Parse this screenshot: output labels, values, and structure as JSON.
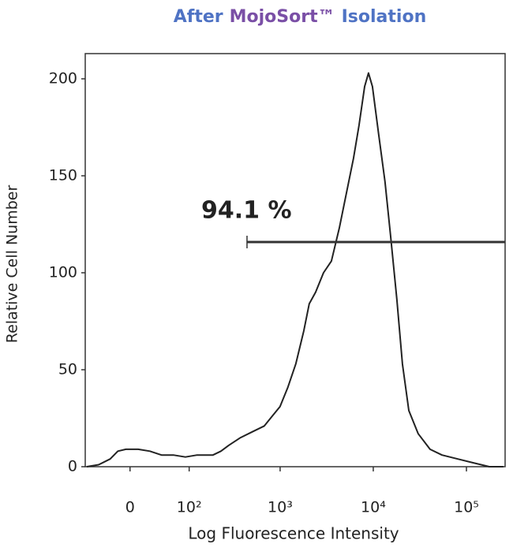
{
  "chart_data": {
    "type": "line",
    "title": [
      {
        "text": "After",
        "color": "#4f73c4"
      },
      {
        "text": "MojoSort™",
        "color": "#7a4fa6"
      },
      {
        "text": "Isolation",
        "color": "#4f73c4"
      }
    ],
    "x_label": "Log Fluorescence Intensity",
    "y_label": "Relative Cell Number",
    "xscale": "asinh",
    "xlim": [
      -66,
      260000
    ],
    "ylim": [
      0,
      213
    ],
    "xticks": [
      0,
      {
        "value": 100,
        "label": "10²"
      },
      {
        "value": 1000,
        "label": "10³"
      },
      {
        "value": 10000,
        "label": "10⁴"
      },
      {
        "value": 100000,
        "label": "10⁵"
      }
    ],
    "yticks": [
      0,
      50,
      100,
      150,
      200
    ],
    "series": [
      {
        "color": "#222222",
        "x": [
          -63,
          -42,
          -25,
          -15,
          -5,
          10,
          25,
          42,
          63,
          90,
          124,
          187,
          229,
          279,
          375,
          503,
          676,
          821,
          997,
          1213,
          1475,
          1793,
          2055,
          2404,
          2922,
          3552,
          4314,
          5248,
          6128,
          7036,
          8071,
          8894,
          9800,
          11440,
          13370,
          15340,
          17930,
          20570,
          24060,
          30380,
          40720,
          54590,
          80600,
          119000,
          176000,
          249000
        ],
        "values": [
          0,
          1,
          4,
          8,
          9,
          9,
          8,
          6,
          6,
          5,
          6,
          6,
          8,
          11,
          15,
          18,
          21,
          26,
          31,
          41,
          53,
          70,
          84,
          90,
          100,
          106,
          123,
          143,
          159,
          176,
          196,
          203,
          196,
          171,
          147,
          119,
          86,
          53,
          29,
          17,
          9,
          6,
          4,
          2,
          0,
          0
        ]
      }
    ],
    "gate": {
      "value": 94.1,
      "label": "94.1 %",
      "range": [
        440,
        260000
      ]
    }
  }
}
